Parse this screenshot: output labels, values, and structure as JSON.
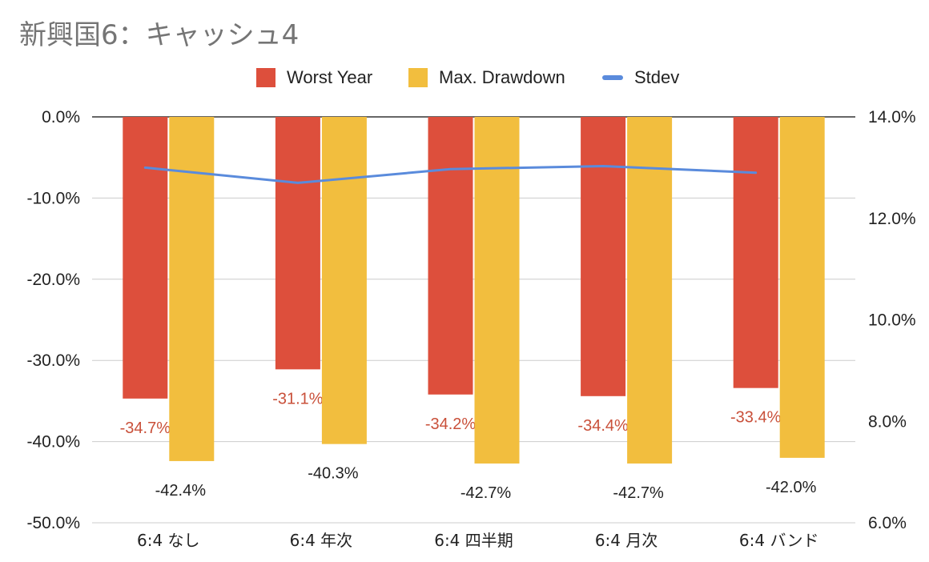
{
  "chart_data": {
    "type": "bar",
    "title": "新興国6：キャッシュ4",
    "categories": [
      "6:4 なし",
      "6:4 年次",
      "6:4 四半期",
      "6:4 月次",
      "6:4 バンド"
    ],
    "series": [
      {
        "name": "Worst Year",
        "axis": "left",
        "kind": "bar",
        "color": "#dd4f3c",
        "values": [
          -34.7,
          -31.1,
          -34.2,
          -34.4,
          -33.4
        ],
        "labels": [
          "-34.7%",
          "-31.1%",
          "-34.2%",
          "-34.4%",
          "-33.4%"
        ],
        "label_color": "#c9503a"
      },
      {
        "name": "Max. Drawdown",
        "axis": "left",
        "kind": "bar",
        "color": "#f2be3e",
        "values": [
          -42.4,
          -40.3,
          -42.7,
          -42.7,
          -42.0
        ],
        "labels": [
          "-42.4%",
          "-40.3%",
          "-42.7%",
          "-42.7%",
          "-42.0%"
        ],
        "label_color": "#222222"
      },
      {
        "name": "Stdev",
        "axis": "right",
        "kind": "line",
        "color": "#5a8bdc",
        "values": [
          13.0,
          12.7,
          12.97,
          13.03,
          12.9
        ]
      }
    ],
    "left_axis": {
      "min": -50,
      "max": 0,
      "ticks": [
        0,
        -10,
        -20,
        -30,
        -40,
        -50
      ],
      "tick_labels": [
        "0.0%",
        "-10.0%",
        "-20.0%",
        "-30.0%",
        "-40.0%",
        "-50.0%"
      ]
    },
    "right_axis": {
      "min": 6,
      "max": 14,
      "ticks": [
        14,
        12,
        10,
        8,
        6
      ],
      "tick_labels": [
        "14.0%",
        "12.0%",
        "10.0%",
        "8.0%",
        "6.0%"
      ]
    },
    "grid": true,
    "legend_position": "top-center"
  }
}
